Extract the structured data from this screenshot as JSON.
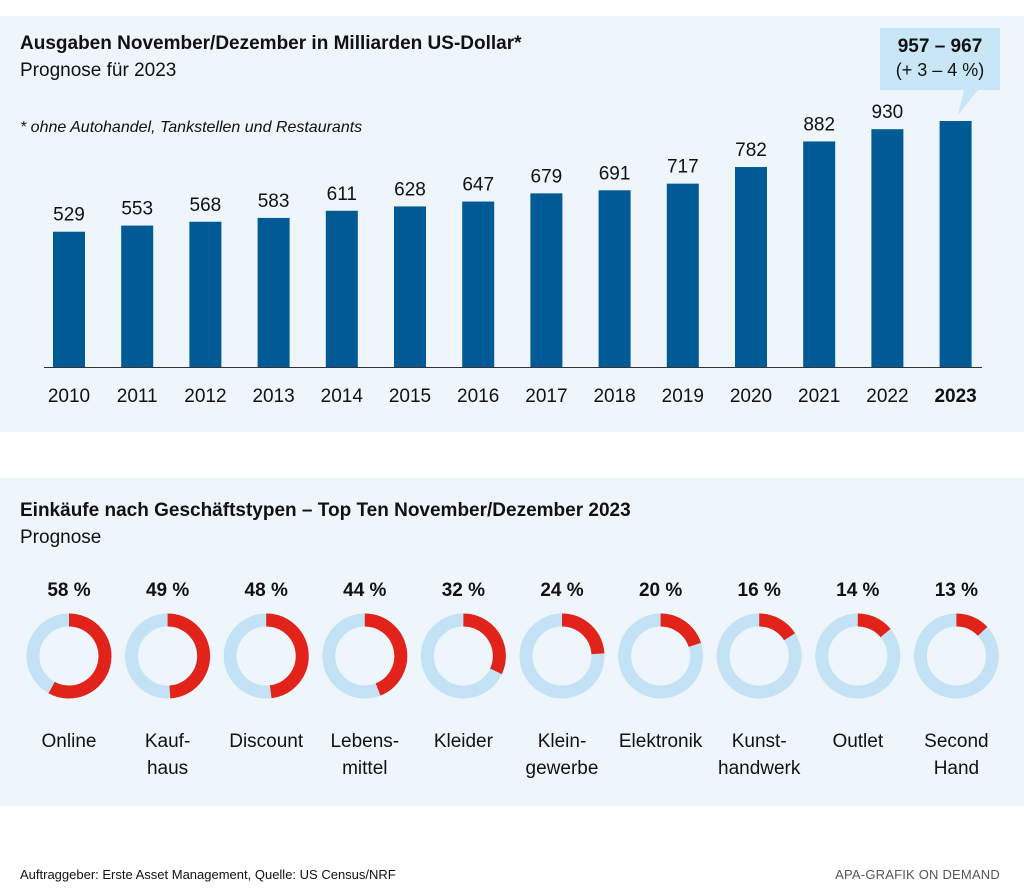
{
  "chart_data": [
    {
      "type": "bar",
      "title": "Ausgaben November/Dezember in Milliarden US-Dollar*",
      "subtitle": "Prognose für 2023",
      "note": "* ohne Autohandel, Tankstellen und Restaurants",
      "categories": [
        "2010",
        "2011",
        "2012",
        "2013",
        "2014",
        "2015",
        "2016",
        "2017",
        "2018",
        "2019",
        "2020",
        "2021",
        "2022",
        "2023"
      ],
      "values": [
        529,
        553,
        568,
        583,
        611,
        628,
        647,
        679,
        691,
        717,
        782,
        882,
        930,
        962
      ],
      "labels": [
        "529",
        "553",
        "568",
        "583",
        "611",
        "628",
        "647",
        "679",
        "691",
        "717",
        "782",
        "882",
        "930",
        ""
      ],
      "highlight_category": "2023",
      "callout": {
        "value": "957 – 967",
        "change": "(+ 3 – 4 %)"
      },
      "ylim": [
        0,
        962
      ],
      "bar_color": "#005a96",
      "callout_color": "#c9e6f7"
    },
    {
      "type": "pie",
      "title": "Einkäufe nach Geschäftstypen  – Top Ten November/Dezember 2023",
      "subtitle": "Prognose",
      "items": [
        {
          "label": [
            "Online"
          ],
          "value": 58,
          "display": "58 %"
        },
        {
          "label": [
            "Kauf-",
            "haus"
          ],
          "value": 49,
          "display": "49 %"
        },
        {
          "label": [
            "Discount"
          ],
          "value": 48,
          "display": "48 %"
        },
        {
          "label": [
            "Lebens-",
            "mittel"
          ],
          "value": 44,
          "display": "44 %"
        },
        {
          "label": [
            "Kleider"
          ],
          "value": 32,
          "display": "32 %"
        },
        {
          "label": [
            "Klein-",
            "gewerbe"
          ],
          "value": 24,
          "display": "24 %"
        },
        {
          "label": [
            "Elektronik"
          ],
          "value": 20,
          "display": "20 %"
        },
        {
          "label": [
            "Kunst-",
            "handwerk"
          ],
          "value": 16,
          "display": "16 %"
        },
        {
          "label": [
            "Outlet"
          ],
          "value": 14,
          "display": "14 %"
        },
        {
          "label": [
            "Second",
            "Hand"
          ],
          "value": 13,
          "display": "13 %"
        }
      ],
      "ring_color": "#c4e2f5",
      "value_color": "#e2231a"
    }
  ],
  "footer": {
    "source": "Auftraggeber: Erste Asset Management, Quelle: US Census/NRF",
    "credit": "APA-GRAFIK ON DEMAND"
  }
}
